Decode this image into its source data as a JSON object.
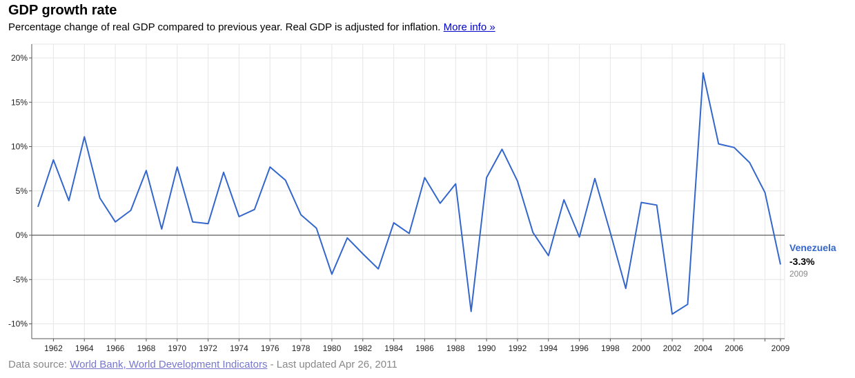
{
  "header": {
    "title": "GDP growth rate",
    "subtitle": "Percentage change of real GDP compared to previous year. Real GDP is adjusted for inflation.",
    "more_info_label": "More info »"
  },
  "footer": {
    "prefix": "Data source:",
    "source_link": "World Bank, World Development Indicators",
    "suffix": "- Last updated Apr 26, 2011"
  },
  "chart_data": {
    "type": "line",
    "title": "GDP growth rate",
    "xlabel": "",
    "ylabel": "",
    "xlim": [
      1961,
      2009
    ],
    "ylim": [
      -12,
      22
    ],
    "y_ticks": [
      20,
      15,
      10,
      5,
      0,
      -5,
      -10
    ],
    "y_tick_labels": [
      "20%",
      "15%",
      "10%",
      "5%",
      "0%",
      "-5%",
      "-10%"
    ],
    "x_ticks": [
      1962,
      1964,
      1966,
      1968,
      1970,
      1972,
      1974,
      1976,
      1978,
      1980,
      1982,
      1984,
      1986,
      1988,
      1990,
      1992,
      1994,
      1996,
      1998,
      2000,
      2002,
      2004,
      2006,
      2009
    ],
    "x_tick_labels": [
      "1962",
      "1964",
      "1966",
      "1968",
      "1970",
      "1972",
      "1974",
      "1976",
      "1978",
      "1980",
      "1982",
      "1984",
      "1986",
      "1988",
      "1990",
      "1992",
      "1994",
      "1996",
      "1998",
      "2000",
      "2002",
      "2004",
      "2006",
      "2009"
    ],
    "grid": true,
    "series": [
      {
        "name": "Venezuela",
        "color": "#3366cc",
        "x": [
          1961,
          1962,
          1963,
          1964,
          1965,
          1966,
          1967,
          1968,
          1969,
          1970,
          1971,
          1972,
          1973,
          1974,
          1975,
          1976,
          1977,
          1978,
          1979,
          1980,
          1981,
          1982,
          1983,
          1984,
          1985,
          1986,
          1987,
          1988,
          1989,
          1990,
          1991,
          1992,
          1993,
          1994,
          1995,
          1996,
          1997,
          1998,
          1999,
          2000,
          2001,
          2002,
          2003,
          2004,
          2005,
          2006,
          2007,
          2008,
          2009
        ],
        "values": [
          3.2,
          8.5,
          3.9,
          11.1,
          4.2,
          1.5,
          2.8,
          7.3,
          0.7,
          7.7,
          1.5,
          1.3,
          7.1,
          2.1,
          2.9,
          7.7,
          6.2,
          2.3,
          0.8,
          -4.4,
          -0.3,
          -2.1,
          -3.8,
          1.4,
          0.2,
          6.5,
          3.6,
          5.8,
          -8.6,
          6.5,
          9.7,
          6.1,
          0.3,
          -2.3,
          4.0,
          -0.2,
          6.4,
          0.3,
          -6.0,
          3.7,
          3.4,
          -8.9,
          -7.8,
          18.3,
          10.3,
          9.9,
          8.2,
          4.8,
          -3.3
        ]
      }
    ],
    "end_label": {
      "name": "Venezuela",
      "value": "-3.3%",
      "year": "2009"
    }
  }
}
